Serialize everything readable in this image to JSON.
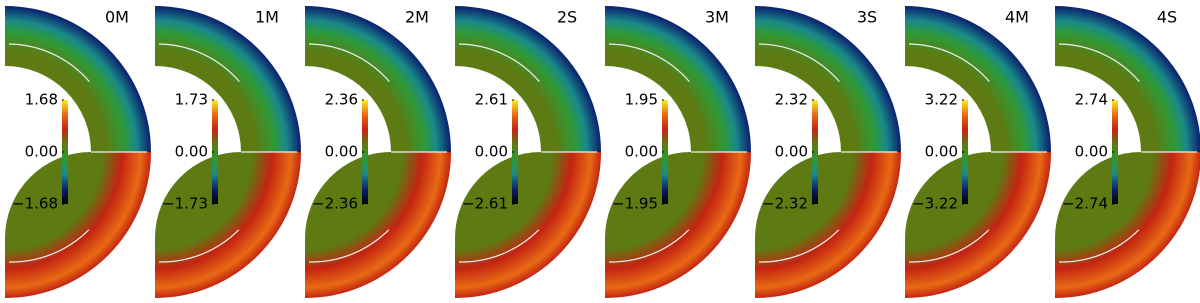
{
  "colormap": [
    "#000000",
    "#0b1f6e",
    "#1a8a8a",
    "#2e9a38",
    "#5e7a12",
    "#c42412",
    "#e86a14",
    "#f8f028"
  ],
  "chart_data": [
    {
      "type": "heatmap",
      "title": "0M",
      "clim": [
        -1.68,
        1.68
      ],
      "cticks": [
        {
          "value": -1.68,
          "label": "−1.68"
        },
        {
          "value": 0,
          "label": "0.00"
        },
        1.68
      ]
    },
    {
      "type": "heatmap",
      "title": "1M",
      "clim": [
        -1.73,
        1.73
      ],
      "cticks": [
        {
          "value": -1.73,
          "label": "−1.73"
        },
        {
          "value": 0,
          "label": "0.00"
        },
        1.73
      ]
    },
    {
      "type": "heatmap",
      "title": "2M",
      "clim": [
        -2.36,
        2.36
      ],
      "cticks": [
        {
          "value": -2.36,
          "label": "−2.36"
        },
        {
          "value": 0,
          "label": "0.00"
        },
        2.36
      ]
    },
    {
      "type": "heatmap",
      "title": "2S",
      "clim": [
        -2.61,
        2.61
      ],
      "cticks": [
        {
          "value": -2.61,
          "label": "−2.61"
        },
        {
          "value": 0,
          "label": "0.00"
        },
        2.61
      ]
    },
    {
      "type": "heatmap",
      "title": "3M",
      "clim": [
        -1.95,
        1.95
      ],
      "cticks": [
        {
          "value": -1.95,
          "label": "−1.95"
        },
        {
          "value": 0,
          "label": "0.00"
        },
        1.95
      ]
    },
    {
      "type": "heatmap",
      "title": "3S",
      "clim": [
        -2.32,
        2.32
      ],
      "cticks": [
        {
          "value": -2.32,
          "label": "−2.32"
        },
        {
          "value": 0,
          "label": "0.00"
        },
        2.32
      ]
    },
    {
      "type": "heatmap",
      "title": "4M",
      "clim": [
        -3.22,
        3.22
      ],
      "cticks": [
        {
          "value": -3.22,
          "label": "−3.22"
        },
        {
          "value": 0,
          "label": "0.00"
        },
        3.22
      ]
    },
    {
      "type": "heatmap",
      "title": "4S",
      "clim": [
        -2.74,
        2.74
      ],
      "cticks": [
        {
          "value": -2.74,
          "label": "−2.74"
        },
        {
          "value": 0,
          "label": "0.00"
        },
        2.74
      ]
    }
  ]
}
